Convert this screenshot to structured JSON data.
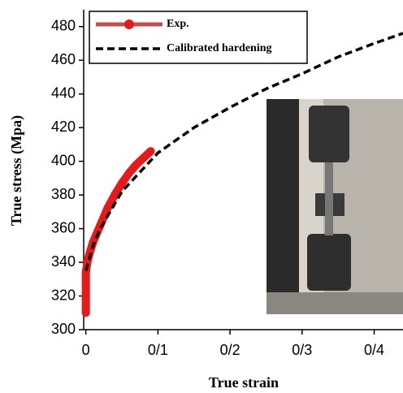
{
  "chart_data": {
    "type": "line",
    "xlabel": "True strain",
    "ylabel": "True stress (Mpa)",
    "xlim": [
      -0.003,
      0.44
    ],
    "ylim": [
      300,
      490
    ],
    "xticks": [
      0,
      {
        "value": 0.1,
        "label": "0/1"
      },
      {
        "value": 0.2,
        "label": "0/2"
      },
      {
        "value": 0.3,
        "label": "0/3"
      },
      {
        "value": 0.4,
        "label": "0/4"
      }
    ],
    "yticks": [
      300,
      320,
      340,
      360,
      380,
      400,
      420,
      440,
      460,
      480
    ],
    "series": [
      {
        "name": "Exp.",
        "color": "#e8191a",
        "x": [
          0,
          0,
          0,
          0,
          0.002,
          0.005,
          0.01,
          0.02,
          0.03,
          0.04,
          0.05,
          0.06,
          0.07,
          0.08,
          0.09
        ],
        "values": [
          310,
          318,
          326,
          334,
          340,
          345,
          352,
          362,
          372,
          380,
          387,
          393,
          398,
          402,
          406
        ]
      },
      {
        "name": "Calibrated hardening",
        "color": "#000000",
        "x": [
          0,
          0.01,
          0.02,
          0.05,
          0.1,
          0.15,
          0.2,
          0.25,
          0.3,
          0.35,
          0.4,
          0.44
        ],
        "values": [
          335,
          350,
          360,
          382,
          405,
          420,
          432,
          443,
          452,
          462,
          470,
          476
        ]
      }
    ]
  }
}
